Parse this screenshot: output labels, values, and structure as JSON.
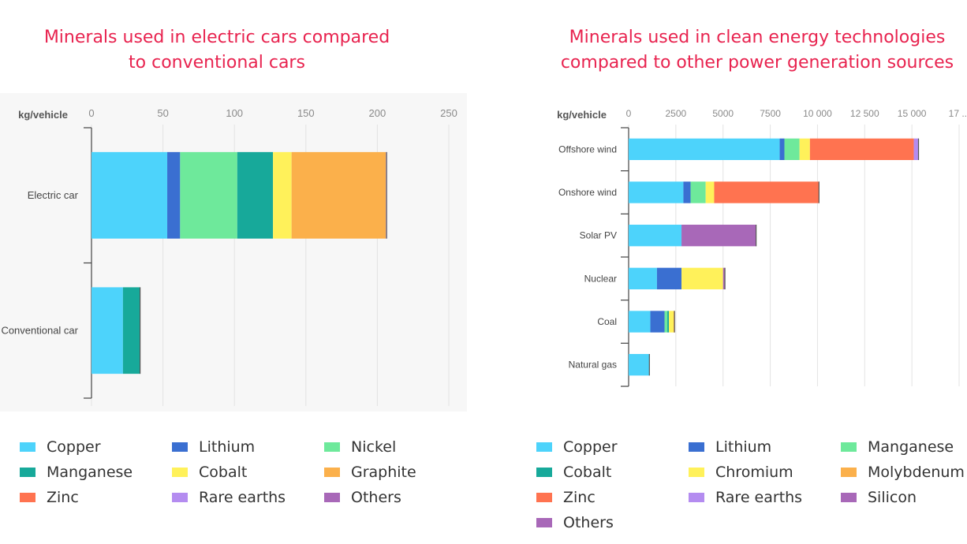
{
  "chart_data": [
    {
      "type": "bar",
      "orientation": "horizontal",
      "stacked": true,
      "title": "Minerals used in electric cars compared to conventional cars",
      "title_lines": [
        "Minerals used in electric cars compared",
        "to conventional cars"
      ],
      "unit_label": "kg/vehicle",
      "xlim": [
        0,
        250
      ],
      "ticks": [
        "0",
        "50",
        "100",
        "150",
        "200",
        "250"
      ],
      "grid": true,
      "categories": [
        "Electric car",
        "Conventional car"
      ],
      "series": [
        {
          "name": "Copper",
          "color": "#4dd3fb",
          "values": [
            53,
            22
          ]
        },
        {
          "name": "Lithium",
          "color": "#3a6fd1",
          "values": [
            9,
            0
          ]
        },
        {
          "name": "Nickel",
          "color": "#6ee99b",
          "values": [
            40,
            0
          ]
        },
        {
          "name": "Manganese",
          "color": "#17a99a",
          "values": [
            25,
            12
          ]
        },
        {
          "name": "Cobalt",
          "color": "#fff15a",
          "values": [
            13,
            0
          ]
        },
        {
          "name": "Graphite",
          "color": "#fbb04b",
          "values": [
            66,
            0
          ]
        },
        {
          "name": "Zinc",
          "color": "#ff7350",
          "values": [
            0,
            0
          ]
        },
        {
          "name": "Rare earths",
          "color": "#b48cf0",
          "values": [
            0.5,
            0
          ]
        },
        {
          "name": "Others",
          "color": "#a868b8",
          "values": [
            0,
            0
          ]
        }
      ],
      "legend": [
        [
          "Copper",
          "Lithium",
          "Nickel"
        ],
        [
          "Manganese",
          "Cobalt",
          "Graphite"
        ],
        [
          "Zinc",
          "Rare earths",
          "Others"
        ]
      ]
    },
    {
      "type": "bar",
      "orientation": "horizontal",
      "stacked": true,
      "title": "Minerals used in clean energy technologies compared to other power generation sources",
      "title_lines": [
        "Minerals used in clean energy technologies",
        "compared to other power generation sources"
      ],
      "unit_label": "kg/vehicle",
      "xlim": [
        0,
        17500
      ],
      "ticks": [
        "0",
        "2500",
        "5000",
        "7500",
        "10 000",
        "12 500",
        "15 000",
        "17 ..."
      ],
      "grid": true,
      "categories": [
        "Offshore wind",
        "Onshore wind",
        "Solar PV",
        "Nuclear",
        "Coal",
        "Natural gas"
      ],
      "series": [
        {
          "name": "Copper",
          "color": "#4dd3fb",
          "values": [
            8000,
            2900,
            2800,
            1500,
            1150,
            1100
          ]
        },
        {
          "name": "Lithium",
          "color": "#3a6fd1",
          "values": [
            250,
            380,
            0,
            1300,
            750,
            0
          ]
        },
        {
          "name": "Manganese",
          "color": "#6ee99b",
          "values": [
            800,
            800,
            0,
            0,
            150,
            0
          ]
        },
        {
          "name": "Cobalt",
          "color": "#17a99a",
          "values": [
            0,
            0,
            0,
            0,
            80,
            0
          ]
        },
        {
          "name": "Chromium",
          "color": "#fff15a",
          "values": [
            550,
            450,
            0,
            2200,
            250,
            0
          ]
        },
        {
          "name": "Molybdenum",
          "color": "#fbb04b",
          "values": [
            0,
            0,
            0,
            0,
            50,
            0
          ]
        },
        {
          "name": "Zinc",
          "color": "#ff7350",
          "values": [
            5500,
            5550,
            0,
            0,
            0,
            0
          ]
        },
        {
          "name": "Rare earths",
          "color": "#b48cf0",
          "values": [
            250,
            0,
            0,
            0,
            0,
            0
          ]
        },
        {
          "name": "Silicon",
          "color": "#a868b8",
          "values": [
            0,
            0,
            3950,
            0,
            0,
            0
          ]
        },
        {
          "name": "Others",
          "color": "#a868b8",
          "values": [
            0,
            0,
            0,
            100,
            0,
            0
          ]
        }
      ],
      "legend": [
        [
          "Copper",
          "Lithium",
          "Manganese"
        ],
        [
          "Cobalt",
          "Chromium",
          "Molybdenum"
        ],
        [
          "Zinc",
          "Rare earths",
          "Silicon"
        ],
        [
          "Others"
        ]
      ]
    }
  ]
}
